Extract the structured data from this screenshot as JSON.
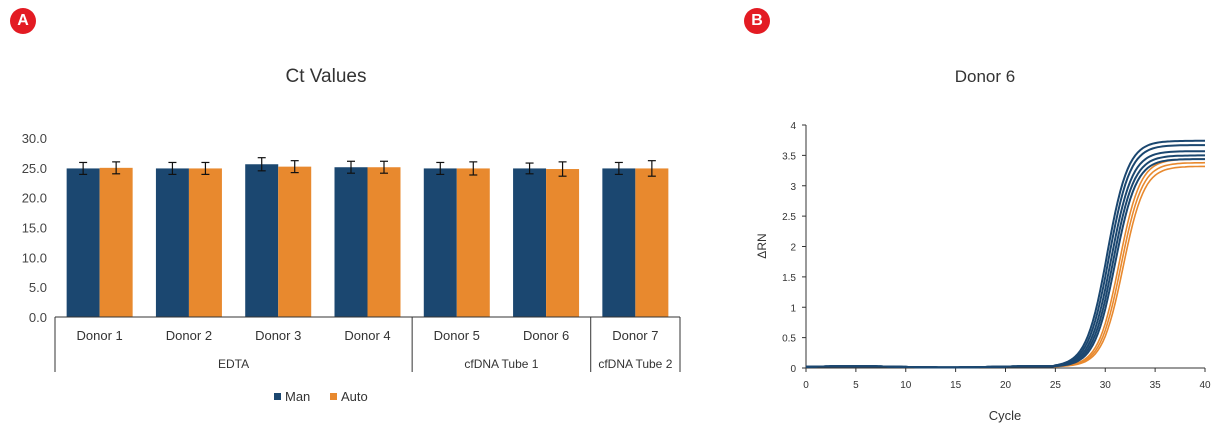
{
  "panels": {
    "a_badge": "A",
    "b_badge": "B"
  },
  "colors": {
    "man": "#1b4770",
    "auto": "#e8892e",
    "badge": "#e31b23",
    "axis": "#333333"
  },
  "chart_data": [
    {
      "type": "bar",
      "title": "Ct Values",
      "categories": [
        "Donor 1",
        "Donor 2",
        "Donor 3",
        "Donor 4",
        "Donor 5",
        "Donor 6",
        "Donor 7"
      ],
      "groups": [
        {
          "label": "EDTA",
          "count": 4
        },
        {
          "label": "cfDNA Tube 1",
          "count": 2
        },
        {
          "label": "cfDNA Tube 2",
          "count": 1
        }
      ],
      "series": [
        {
          "name": "Man",
          "color": "#1b4770",
          "values": [
            24.9,
            24.9,
            25.6,
            25.1,
            24.9,
            24.9,
            24.9
          ],
          "errors": [
            1.0,
            1.0,
            1.1,
            1.0,
            1.0,
            0.9,
            1.0
          ]
        },
        {
          "name": "Auto",
          "color": "#e8892e",
          "values": [
            25.0,
            24.9,
            25.2,
            25.1,
            24.9,
            24.8,
            24.9
          ],
          "errors": [
            1.0,
            1.0,
            1.0,
            1.0,
            1.1,
            1.2,
            1.3
          ]
        }
      ],
      "ylim": [
        0,
        30
      ],
      "yticks": [
        "0.0",
        "5.0",
        "10.0",
        "15.0",
        "20.0",
        "25.0",
        "30.0"
      ],
      "legend_position": "bottom"
    },
    {
      "type": "line",
      "title": "Donor 6",
      "xlabel": "Cycle",
      "ylabel": "ΔRN",
      "xlim": [
        0,
        40
      ],
      "ylim": [
        0,
        4
      ],
      "xticks": [
        "0",
        "5",
        "10",
        "15",
        "20",
        "25",
        "30",
        "35",
        "40"
      ],
      "yticks": [
        "0",
        "0.5",
        "1",
        "1.5",
        "2",
        "2.5",
        "3",
        "3.5",
        "4"
      ],
      "series": [
        {
          "color": "#1b4770",
          "midpoint": 30.2,
          "plateau": 3.72
        },
        {
          "color": "#1b4770",
          "midpoint": 30.4,
          "plateau": 3.65
        },
        {
          "color": "#1b4770",
          "midpoint": 30.6,
          "plateau": 3.55
        },
        {
          "color": "#1b4770",
          "midpoint": 30.8,
          "plateau": 3.48
        },
        {
          "color": "#1b4770",
          "midpoint": 31.0,
          "plateau": 3.42
        },
        {
          "color": "#e8892e",
          "midpoint": 31.4,
          "plateau": 3.42
        },
        {
          "color": "#e8892e",
          "midpoint": 31.6,
          "plateau": 3.36
        },
        {
          "color": "#e8892e",
          "midpoint": 31.8,
          "plateau": 3.3
        }
      ]
    }
  ]
}
